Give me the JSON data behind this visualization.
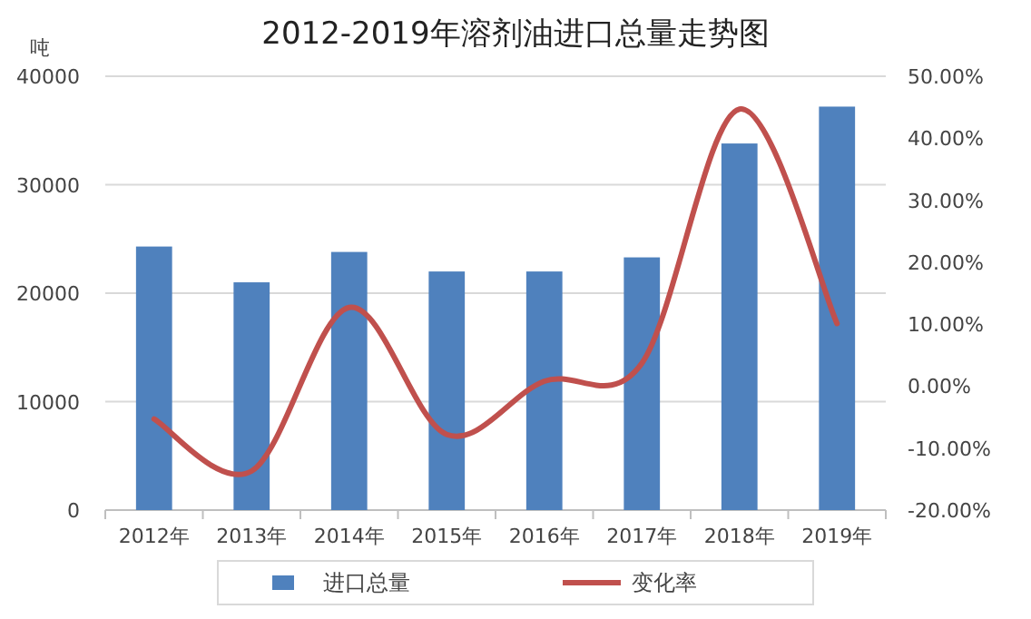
{
  "chart_data": {
    "type": "bar",
    "title": "2012-2019年溶剂油进口总量走势图",
    "ylabel": "吨",
    "categories": [
      "2012年",
      "2013年",
      "2014年",
      "2015年",
      "2016年",
      "2017年",
      "2018年",
      "2019年"
    ],
    "series": [
      {
        "name": "进口总量",
        "color": "#4f81bd",
        "values": [
          24300,
          21000,
          23800,
          22000,
          22000,
          23300,
          33800,
          37200
        ]
      },
      {
        "name": "变化率",
        "type": "line",
        "axis": "y2",
        "color": "#c0504d",
        "values": [
          -5.3,
          -13.7,
          12.7,
          -7.8,
          0.8,
          3.7,
          44.7,
          10.1
        ]
      }
    ],
    "ylim": [
      0,
      40000
    ],
    "yticks": [
      0,
      10000,
      20000,
      30000,
      40000
    ],
    "y2lim": [
      -20,
      50
    ],
    "y2ticks": [
      {
        "value": -20,
        "label": "-20.00%"
      },
      {
        "value": -10,
        "label": "-10.00%"
      },
      {
        "value": 0,
        "label": "0.00%"
      },
      {
        "value": 10,
        "label": "10.00%"
      },
      {
        "value": 20,
        "label": "20.00%"
      },
      {
        "value": 30,
        "label": "30.00%"
      },
      {
        "value": 40,
        "label": "40.00%"
      },
      {
        "value": 50,
        "label": "50.00%"
      }
    ],
    "grid": "y",
    "legend": "bottom"
  }
}
